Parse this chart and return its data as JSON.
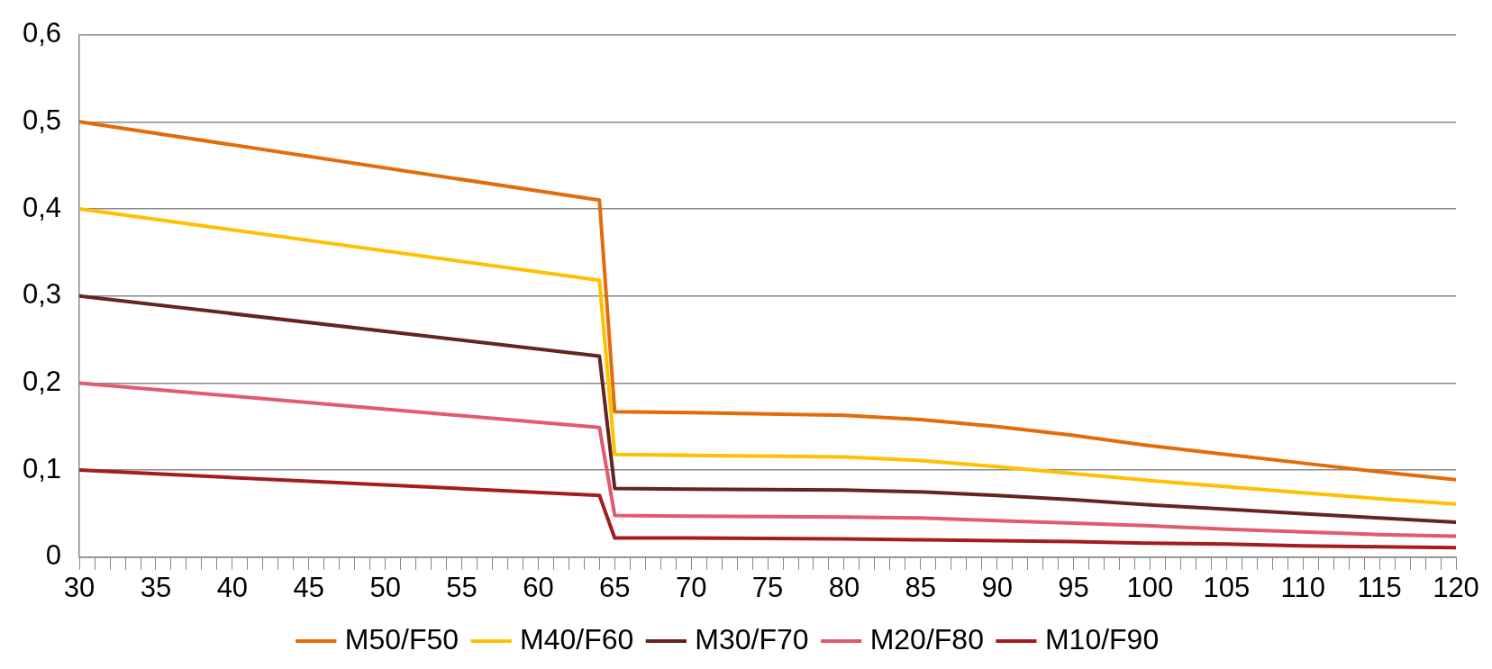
{
  "chart_data": {
    "type": "line",
    "x": [
      30,
      64,
      65,
      70,
      80,
      85,
      90,
      95,
      100,
      105,
      110,
      115,
      120
    ],
    "series": [
      {
        "name": "M50/F50",
        "color": "#e36c0a",
        "values": [
          0.5,
          0.41,
          0.167,
          0.166,
          0.163,
          0.158,
          0.15,
          0.14,
          0.128,
          0.118,
          0.108,
          0.098,
          0.089
        ]
      },
      {
        "name": "M40/F60",
        "color": "#ffc000",
        "values": [
          0.4,
          0.318,
          0.118,
          0.117,
          0.115,
          0.111,
          0.104,
          0.096,
          0.088,
          0.081,
          0.074,
          0.067,
          0.061
        ]
      },
      {
        "name": "M30/F70",
        "color": "#632523",
        "values": [
          0.3,
          0.231,
          0.079,
          0.078,
          0.077,
          0.075,
          0.071,
          0.066,
          0.06,
          0.055,
          0.05,
          0.045,
          0.04
        ]
      },
      {
        "name": "M20/F80",
        "color": "#e05a70",
        "values": [
          0.2,
          0.149,
          0.048,
          0.047,
          0.046,
          0.045,
          0.042,
          0.039,
          0.036,
          0.032,
          0.029,
          0.026,
          0.024
        ]
      },
      {
        "name": "M10/F90",
        "color": "#a31d1d",
        "values": [
          0.1,
          0.071,
          0.022,
          0.022,
          0.021,
          0.02,
          0.019,
          0.018,
          0.016,
          0.015,
          0.013,
          0.012,
          0.011
        ]
      }
    ],
    "xlim": [
      30,
      120
    ],
    "xticks": [
      30,
      {
        "value": 31,
        "label": null
      },
      {
        "value": 32,
        "label": null
      },
      {
        "value": 33,
        "label": null
      },
      {
        "value": 34,
        "label": null
      },
      35,
      {
        "value": 36,
        "label": null
      },
      {
        "value": 37,
        "label": null
      },
      {
        "value": 38,
        "label": null
      },
      {
        "value": 39,
        "label": null
      },
      40,
      {
        "value": 41,
        "label": null
      },
      {
        "value": 42,
        "label": null
      },
      {
        "value": 43,
        "label": null
      },
      {
        "value": 44,
        "label": null
      },
      45,
      {
        "value": 46,
        "label": null
      },
      {
        "value": 47,
        "label": null
      },
      {
        "value": 48,
        "label": null
      },
      {
        "value": 49,
        "label": null
      },
      50,
      {
        "value": 51,
        "label": null
      },
      {
        "value": 52,
        "label": null
      },
      {
        "value": 53,
        "label": null
      },
      {
        "value": 54,
        "label": null
      },
      55,
      {
        "value": 56,
        "label": null
      },
      {
        "value": 57,
        "label": null
      },
      {
        "value": 58,
        "label": null
      },
      {
        "value": 59,
        "label": null
      },
      60,
      {
        "value": 61,
        "label": null
      },
      {
        "value": 62,
        "label": null
      },
      {
        "value": 63,
        "label": null
      },
      {
        "value": 64,
        "label": null
      },
      65,
      {
        "value": 66,
        "label": null
      },
      {
        "value": 67,
        "label": null
      },
      {
        "value": 68,
        "label": null
      },
      {
        "value": 69,
        "label": null
      },
      70,
      {
        "value": 71,
        "label": null
      },
      {
        "value": 72,
        "label": null
      },
      {
        "value": 73,
        "label": null
      },
      {
        "value": 74,
        "label": null
      },
      75,
      {
        "value": 76,
        "label": null
      },
      {
        "value": 77,
        "label": null
      },
      {
        "value": 78,
        "label": null
      },
      {
        "value": 79,
        "label": null
      },
      80,
      {
        "value": 81,
        "label": null
      },
      {
        "value": 82,
        "label": null
      },
      {
        "value": 83,
        "label": null
      },
      {
        "value": 84,
        "label": null
      },
      85,
      {
        "value": 86,
        "label": null
      },
      {
        "value": 87,
        "label": null
      },
      {
        "value": 88,
        "label": null
      },
      {
        "value": 89,
        "label": null
      },
      90,
      {
        "value": 91,
        "label": null
      },
      {
        "value": 92,
        "label": null
      },
      {
        "value": 93,
        "label": null
      },
      {
        "value": 94,
        "label": null
      },
      95,
      {
        "value": 96,
        "label": null
      },
      {
        "value": 97,
        "label": null
      },
      {
        "value": 98,
        "label": null
      },
      {
        "value": 99,
        "label": null
      },
      100,
      {
        "value": 101,
        "label": null
      },
      {
        "value": 102,
        "label": null
      },
      {
        "value": 103,
        "label": null
      },
      {
        "value": 104,
        "label": null
      },
      105,
      {
        "value": 106,
        "label": null
      },
      {
        "value": 107,
        "label": null
      },
      {
        "value": 108,
        "label": null
      },
      {
        "value": 109,
        "label": null
      },
      110,
      {
        "value": 111,
        "label": null
      },
      {
        "value": 112,
        "label": null
      },
      {
        "value": 113,
        "label": null
      },
      {
        "value": 114,
        "label": null
      },
      115,
      {
        "value": 116,
        "label": null
      },
      {
        "value": 117,
        "label": null
      },
      {
        "value": 118,
        "label": null
      },
      {
        "value": 119,
        "label": null
      },
      120
    ],
    "ylim": [
      0,
      0.6
    ],
    "yticks": [
      0,
      {
        "value": 0.1,
        "label": "0,1"
      },
      {
        "value": 0.2,
        "label": "0,2"
      },
      {
        "value": 0.3,
        "label": "0,3"
      },
      {
        "value": 0.4,
        "label": "0,4"
      },
      {
        "value": 0.5,
        "label": "0,5"
      },
      {
        "value": 0.6,
        "label": "0,6"
      }
    ],
    "grid": "y",
    "legend": "bottom",
    "marker": "none",
    "line_style": "solid"
  }
}
